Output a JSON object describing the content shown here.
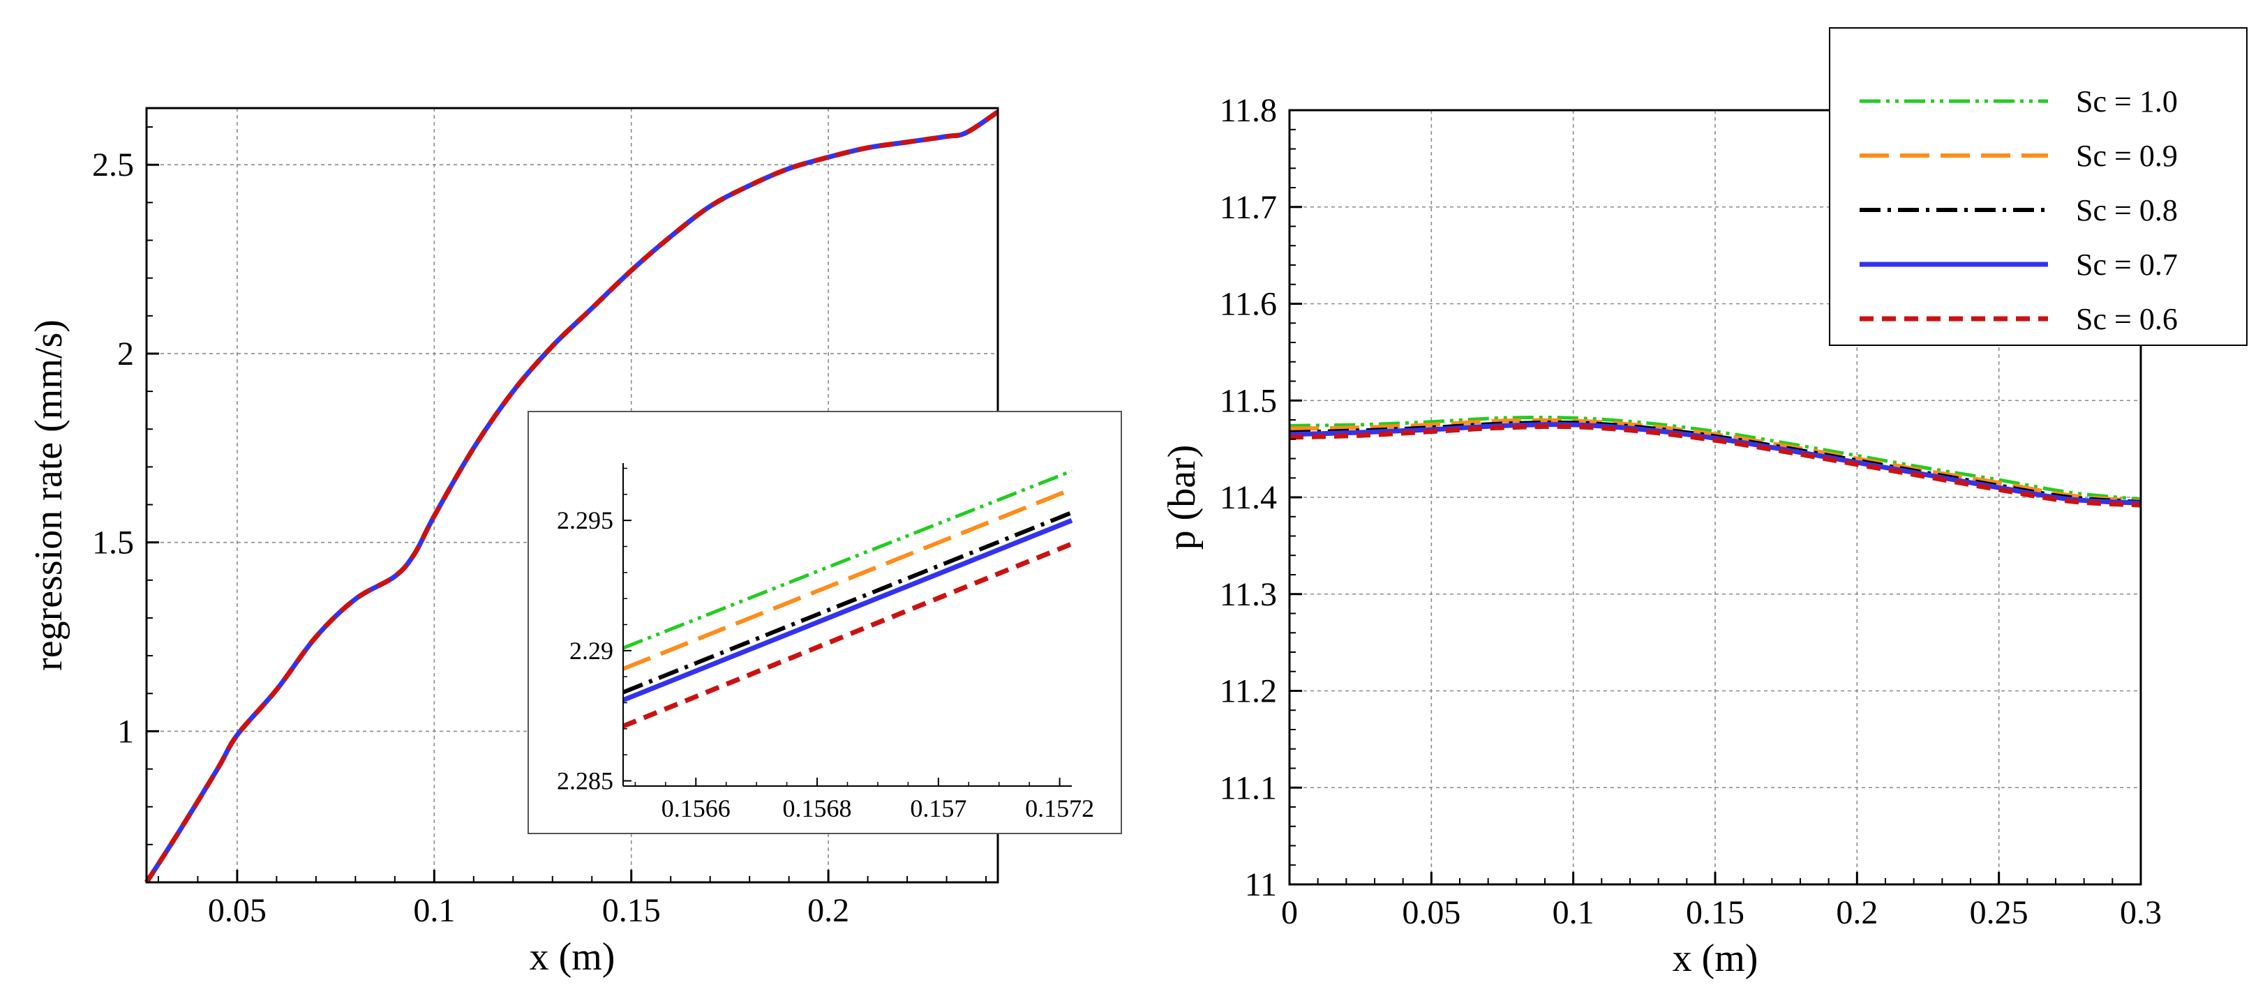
{
  "chart_data": [
    {
      "type": "line",
      "id": "regression-rate",
      "title": "",
      "xlabel": "x (m)",
      "ylabel": "regression rate (mm/s)",
      "xlim": [
        0.027,
        0.243
      ],
      "ylim": [
        0.6,
        2.65
      ],
      "xticks": [
        0.05,
        0.1,
        0.15,
        0.2
      ],
      "xtick_labels": [
        "0.05",
        "0.1",
        "0.15",
        "0.2"
      ],
      "yticks": [
        1,
        1.5,
        2,
        2.5
      ],
      "ytick_labels": [
        "1",
        "1.5",
        "2",
        "2.5"
      ],
      "grid": true,
      "series": [
        {
          "name": "Sc = 1.0",
          "color": "#22cc22",
          "dash": "dashdotdot",
          "x": [
            0.027,
            0.035,
            0.045,
            0.05,
            0.06,
            0.07,
            0.08,
            0.09,
            0.095,
            0.1,
            0.11,
            0.12,
            0.13,
            0.14,
            0.15,
            0.16,
            0.17,
            0.18,
            0.19,
            0.2,
            0.21,
            0.22,
            0.23,
            0.235,
            0.243
          ],
          "y": [
            0.6,
            0.73,
            0.9,
            0.99,
            1.11,
            1.25,
            1.35,
            1.41,
            1.47,
            1.57,
            1.75,
            1.9,
            2.02,
            2.12,
            2.22,
            2.31,
            2.39,
            2.445,
            2.49,
            2.52,
            2.545,
            2.56,
            2.575,
            2.585,
            2.64
          ]
        },
        {
          "name": "Sc = 0.9",
          "color": "#ff8c1a",
          "dash": "longdash",
          "x": [
            0.027,
            0.035,
            0.045,
            0.05,
            0.06,
            0.07,
            0.08,
            0.09,
            0.095,
            0.1,
            0.11,
            0.12,
            0.13,
            0.14,
            0.15,
            0.16,
            0.17,
            0.18,
            0.19,
            0.2,
            0.21,
            0.22,
            0.23,
            0.235,
            0.243
          ],
          "y": [
            0.6,
            0.73,
            0.9,
            0.99,
            1.11,
            1.25,
            1.35,
            1.41,
            1.47,
            1.57,
            1.75,
            1.9,
            2.02,
            2.12,
            2.22,
            2.31,
            2.39,
            2.445,
            2.49,
            2.52,
            2.545,
            2.56,
            2.575,
            2.585,
            2.64
          ]
        },
        {
          "name": "Sc = 0.8",
          "color": "#000000",
          "dash": "dashdot",
          "x": [
            0.027,
            0.035,
            0.045,
            0.05,
            0.06,
            0.07,
            0.08,
            0.09,
            0.095,
            0.1,
            0.11,
            0.12,
            0.13,
            0.14,
            0.15,
            0.16,
            0.17,
            0.18,
            0.19,
            0.2,
            0.21,
            0.22,
            0.23,
            0.235,
            0.243
          ],
          "y": [
            0.6,
            0.73,
            0.9,
            0.99,
            1.11,
            1.25,
            1.35,
            1.41,
            1.47,
            1.57,
            1.75,
            1.9,
            2.02,
            2.12,
            2.22,
            2.31,
            2.39,
            2.445,
            2.49,
            2.52,
            2.545,
            2.56,
            2.575,
            2.585,
            2.64
          ]
        },
        {
          "name": "Sc = 0.7",
          "color": "#3333ee",
          "dash": "solid",
          "x": [
            0.027,
            0.035,
            0.045,
            0.05,
            0.06,
            0.07,
            0.08,
            0.09,
            0.095,
            0.1,
            0.11,
            0.12,
            0.13,
            0.14,
            0.15,
            0.16,
            0.17,
            0.18,
            0.19,
            0.2,
            0.21,
            0.22,
            0.23,
            0.235,
            0.243
          ],
          "y": [
            0.6,
            0.73,
            0.9,
            0.99,
            1.11,
            1.25,
            1.35,
            1.41,
            1.47,
            1.57,
            1.75,
            1.9,
            2.02,
            2.12,
            2.22,
            2.31,
            2.39,
            2.445,
            2.49,
            2.52,
            2.545,
            2.56,
            2.575,
            2.585,
            2.64
          ]
        },
        {
          "name": "Sc = 0.6",
          "color": "#cc1111",
          "dash": "dashed",
          "x": [
            0.027,
            0.035,
            0.045,
            0.05,
            0.06,
            0.07,
            0.08,
            0.09,
            0.095,
            0.1,
            0.11,
            0.12,
            0.13,
            0.14,
            0.15,
            0.16,
            0.17,
            0.18,
            0.19,
            0.2,
            0.21,
            0.22,
            0.23,
            0.235,
            0.243
          ],
          "y": [
            0.6,
            0.73,
            0.9,
            0.99,
            1.11,
            1.25,
            1.35,
            1.41,
            1.47,
            1.57,
            1.75,
            1.9,
            2.02,
            2.12,
            2.22,
            2.31,
            2.39,
            2.445,
            2.49,
            2.52,
            2.545,
            2.56,
            2.575,
            2.585,
            2.64
          ]
        }
      ],
      "inset": {
        "type": "line",
        "xlim": [
          0.15648,
          0.15722
        ],
        "ylim": [
          2.2848,
          2.2972
        ],
        "xticks": [
          0.1566,
          0.1568,
          0.157,
          0.1572
        ],
        "xtick_labels": [
          "0.1566",
          "0.1568",
          "0.157",
          "0.1572"
        ],
        "yticks": [
          2.285,
          2.29,
          2.295
        ],
        "ytick_labels": [
          "2.285",
          "2.29",
          "2.295"
        ],
        "grid": false,
        "series": [
          {
            "name": "Sc = 1.0",
            "color": "#22cc22",
            "dash": "dashdotdot",
            "x": [
              0.15648,
              0.15722
            ],
            "y": [
              2.2901,
              2.2969
            ]
          },
          {
            "name": "Sc = 0.9",
            "color": "#ff8c1a",
            "dash": "longdash",
            "x": [
              0.15648,
              0.15722
            ],
            "y": [
              2.2893,
              2.2962
            ]
          },
          {
            "name": "Sc = 0.8",
            "color": "#000000",
            "dash": "dashdot",
            "x": [
              0.15648,
              0.15722
            ],
            "y": [
              2.2884,
              2.2953
            ]
          },
          {
            "name": "Sc = 0.7",
            "color": "#3333ee",
            "dash": "solid",
            "x": [
              0.15648,
              0.15722
            ],
            "y": [
              2.2881,
              2.295
            ]
          },
          {
            "name": "Sc = 0.6",
            "color": "#cc1111",
            "dash": "dashed",
            "x": [
              0.15648,
              0.15722
            ],
            "y": [
              2.2871,
              2.2941
            ]
          }
        ]
      }
    },
    {
      "type": "line",
      "id": "pressure",
      "title": "",
      "xlabel": "x (m)",
      "ylabel": "p (bar)",
      "xlim": [
        0,
        0.3
      ],
      "ylim": [
        11,
        11.8
      ],
      "xticks": [
        0,
        0.05,
        0.1,
        0.15,
        0.2,
        0.25,
        0.3
      ],
      "xtick_labels": [
        "0",
        "0.05",
        "0.1",
        "0.15",
        "0.2",
        "0.25",
        "0.3"
      ],
      "yticks": [
        11,
        11.1,
        11.2,
        11.3,
        11.4,
        11.5,
        11.6,
        11.7,
        11.8
      ],
      "ytick_labels": [
        "11",
        "11.1",
        "11.2",
        "11.3",
        "11.4",
        "11.5",
        "11.6",
        "11.7",
        "11.8"
      ],
      "grid": true,
      "legend": {
        "position": "top-right",
        "entries": [
          "Sc = 1.0",
          "Sc = 0.9",
          "Sc = 0.8",
          "Sc = 0.7",
          "Sc = 0.6"
        ]
      },
      "series": [
        {
          "name": "Sc = 1.0",
          "color": "#22cc22",
          "dash": "dashdotdot",
          "x": [
            0,
            0.025,
            0.05,
            0.075,
            0.1,
            0.125,
            0.15,
            0.175,
            0.2,
            0.225,
            0.25,
            0.275,
            0.3
          ],
          "y": [
            11.474,
            11.475,
            11.478,
            11.482,
            11.482,
            11.477,
            11.468,
            11.456,
            11.443,
            11.43,
            11.418,
            11.405,
            11.398
          ]
        },
        {
          "name": "Sc = 0.9",
          "color": "#ff8c1a",
          "dash": "longdash",
          "x": [
            0,
            0.025,
            0.05,
            0.075,
            0.1,
            0.125,
            0.15,
            0.175,
            0.2,
            0.225,
            0.25,
            0.275,
            0.3
          ],
          "y": [
            11.471,
            11.472,
            11.475,
            11.479,
            11.479,
            11.474,
            11.465,
            11.453,
            11.44,
            11.427,
            11.415,
            11.402,
            11.396
          ]
        },
        {
          "name": "Sc = 0.8",
          "color": "#000000",
          "dash": "dashdot",
          "x": [
            0,
            0.025,
            0.05,
            0.075,
            0.1,
            0.125,
            0.15,
            0.175,
            0.2,
            0.225,
            0.25,
            0.275,
            0.3
          ],
          "y": [
            11.467,
            11.469,
            11.472,
            11.476,
            11.477,
            11.472,
            11.463,
            11.451,
            11.438,
            11.425,
            11.412,
            11.4,
            11.395
          ]
        },
        {
          "name": "Sc = 0.7",
          "color": "#3333ee",
          "dash": "solid",
          "x": [
            0,
            0.025,
            0.05,
            0.075,
            0.1,
            0.125,
            0.15,
            0.175,
            0.2,
            0.225,
            0.25,
            0.275,
            0.3
          ],
          "y": [
            11.465,
            11.467,
            11.47,
            11.474,
            11.475,
            11.47,
            11.461,
            11.449,
            11.436,
            11.423,
            11.41,
            11.398,
            11.394
          ]
        },
        {
          "name": "Sc = 0.6",
          "color": "#cc1111",
          "dash": "dashed",
          "x": [
            0,
            0.025,
            0.05,
            0.075,
            0.1,
            0.125,
            0.15,
            0.175,
            0.2,
            0.225,
            0.25,
            0.275,
            0.3
          ],
          "y": [
            11.462,
            11.464,
            11.468,
            11.472,
            11.473,
            11.468,
            11.459,
            11.447,
            11.434,
            11.421,
            11.408,
            11.396,
            11.392
          ]
        }
      ]
    }
  ]
}
